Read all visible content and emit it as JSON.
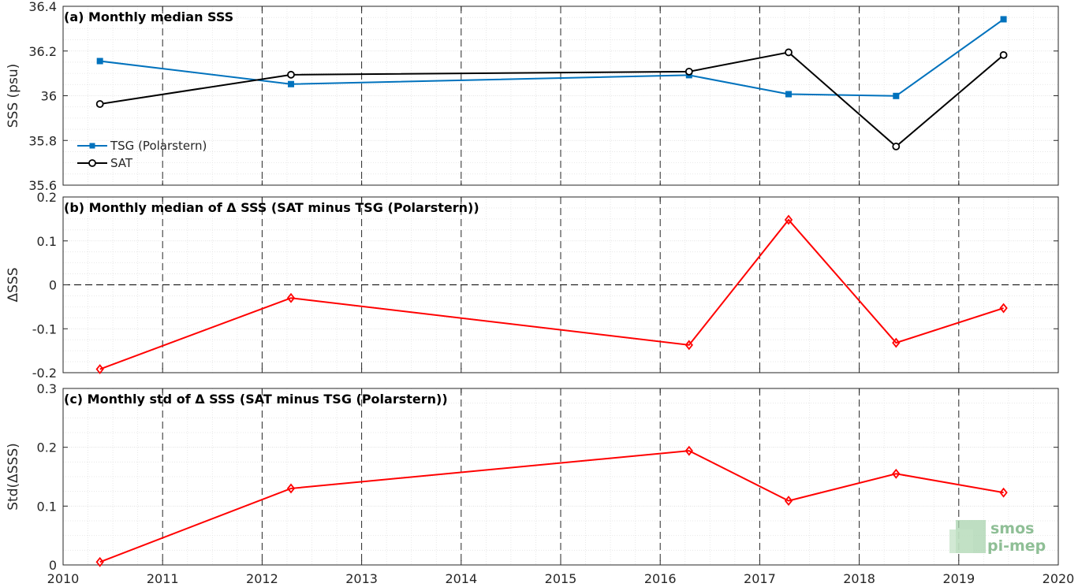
{
  "x_axis": {
    "xlim": [
      2010,
      2020
    ],
    "ticks": [
      2010,
      2011,
      2012,
      2013,
      2014,
      2015,
      2016,
      2017,
      2018,
      2019,
      2020
    ],
    "tick_labels": [
      "2010",
      "2011",
      "2012",
      "2013",
      "2014",
      "2015",
      "2016",
      "2017",
      "2018",
      "2019",
      "2020"
    ],
    "major_grid": "dashed vertical lines at each year",
    "minor_grid": true
  },
  "chart_data": [
    {
      "type": "line",
      "title": "(a) Monthly median SSS",
      "xlabel": "",
      "ylabel": "SSS (psu)",
      "ylim": [
        35.6,
        36.4
      ],
      "yticks": [
        35.6,
        35.8,
        36,
        36.2,
        36.4
      ],
      "ytick_labels": [
        "35.6",
        "35.8",
        "36",
        "36.2",
        "36.4"
      ],
      "legend_position": "lower-left",
      "series": [
        {
          "name": "TSG (Polarstern)",
          "color": "#0072bd",
          "marker": "filled-square",
          "x": [
            2010.37,
            2012.29,
            2016.29,
            2017.29,
            2018.37,
            2019.45
          ],
          "values": [
            36.155,
            36.052,
            36.092,
            36.007,
            35.999,
            36.342
          ]
        },
        {
          "name": "SAT",
          "color": "#000000",
          "marker": "open-circle",
          "x": [
            2010.37,
            2012.29,
            2016.29,
            2017.29,
            2018.37,
            2019.45
          ],
          "values": [
            35.963,
            36.094,
            36.108,
            36.194,
            35.773,
            36.182
          ]
        }
      ]
    },
    {
      "type": "line",
      "title": "(b) Monthly median of Δ SSS (SAT minus TSG (Polarstern))",
      "xlabel": "",
      "ylabel": "ΔSSS",
      "ylim": [
        -0.2,
        0.2
      ],
      "yticks": [
        -0.2,
        -0.1,
        0,
        0.1,
        0.2
      ],
      "ytick_labels": [
        "-0.2",
        "-0.1",
        "0",
        "0.1",
        "0.2"
      ],
      "zero_line": "dashed",
      "series": [
        {
          "color": "#ff0000",
          "marker": "diamond",
          "x": [
            2010.37,
            2012.29,
            2016.29,
            2017.29,
            2018.37,
            2019.45
          ],
          "values": [
            -0.192,
            -0.03,
            -0.137,
            0.148,
            -0.132,
            -0.053
          ]
        }
      ]
    },
    {
      "type": "line",
      "title": "(c) Monthly std of Δ SSS (SAT minus TSG (Polarstern))",
      "xlabel": "",
      "ylabel": "Std(ΔSSS)",
      "ylim": [
        0,
        0.3
      ],
      "yticks": [
        0,
        0.1,
        0.2,
        0.3
      ],
      "ytick_labels": [
        "0",
        "0.1",
        "0.2",
        "0.3"
      ],
      "series": [
        {
          "color": "#ff0000",
          "marker": "diamond",
          "x": [
            2010.37,
            2012.29,
            2016.29,
            2017.29,
            2018.37,
            2019.45
          ],
          "values": [
            0.005,
            0.13,
            0.194,
            0.109,
            0.155,
            0.123
          ]
        }
      ]
    }
  ],
  "logo": {
    "line1": "smos",
    "line2": "pi-mep",
    "color": "#8fbf96"
  }
}
